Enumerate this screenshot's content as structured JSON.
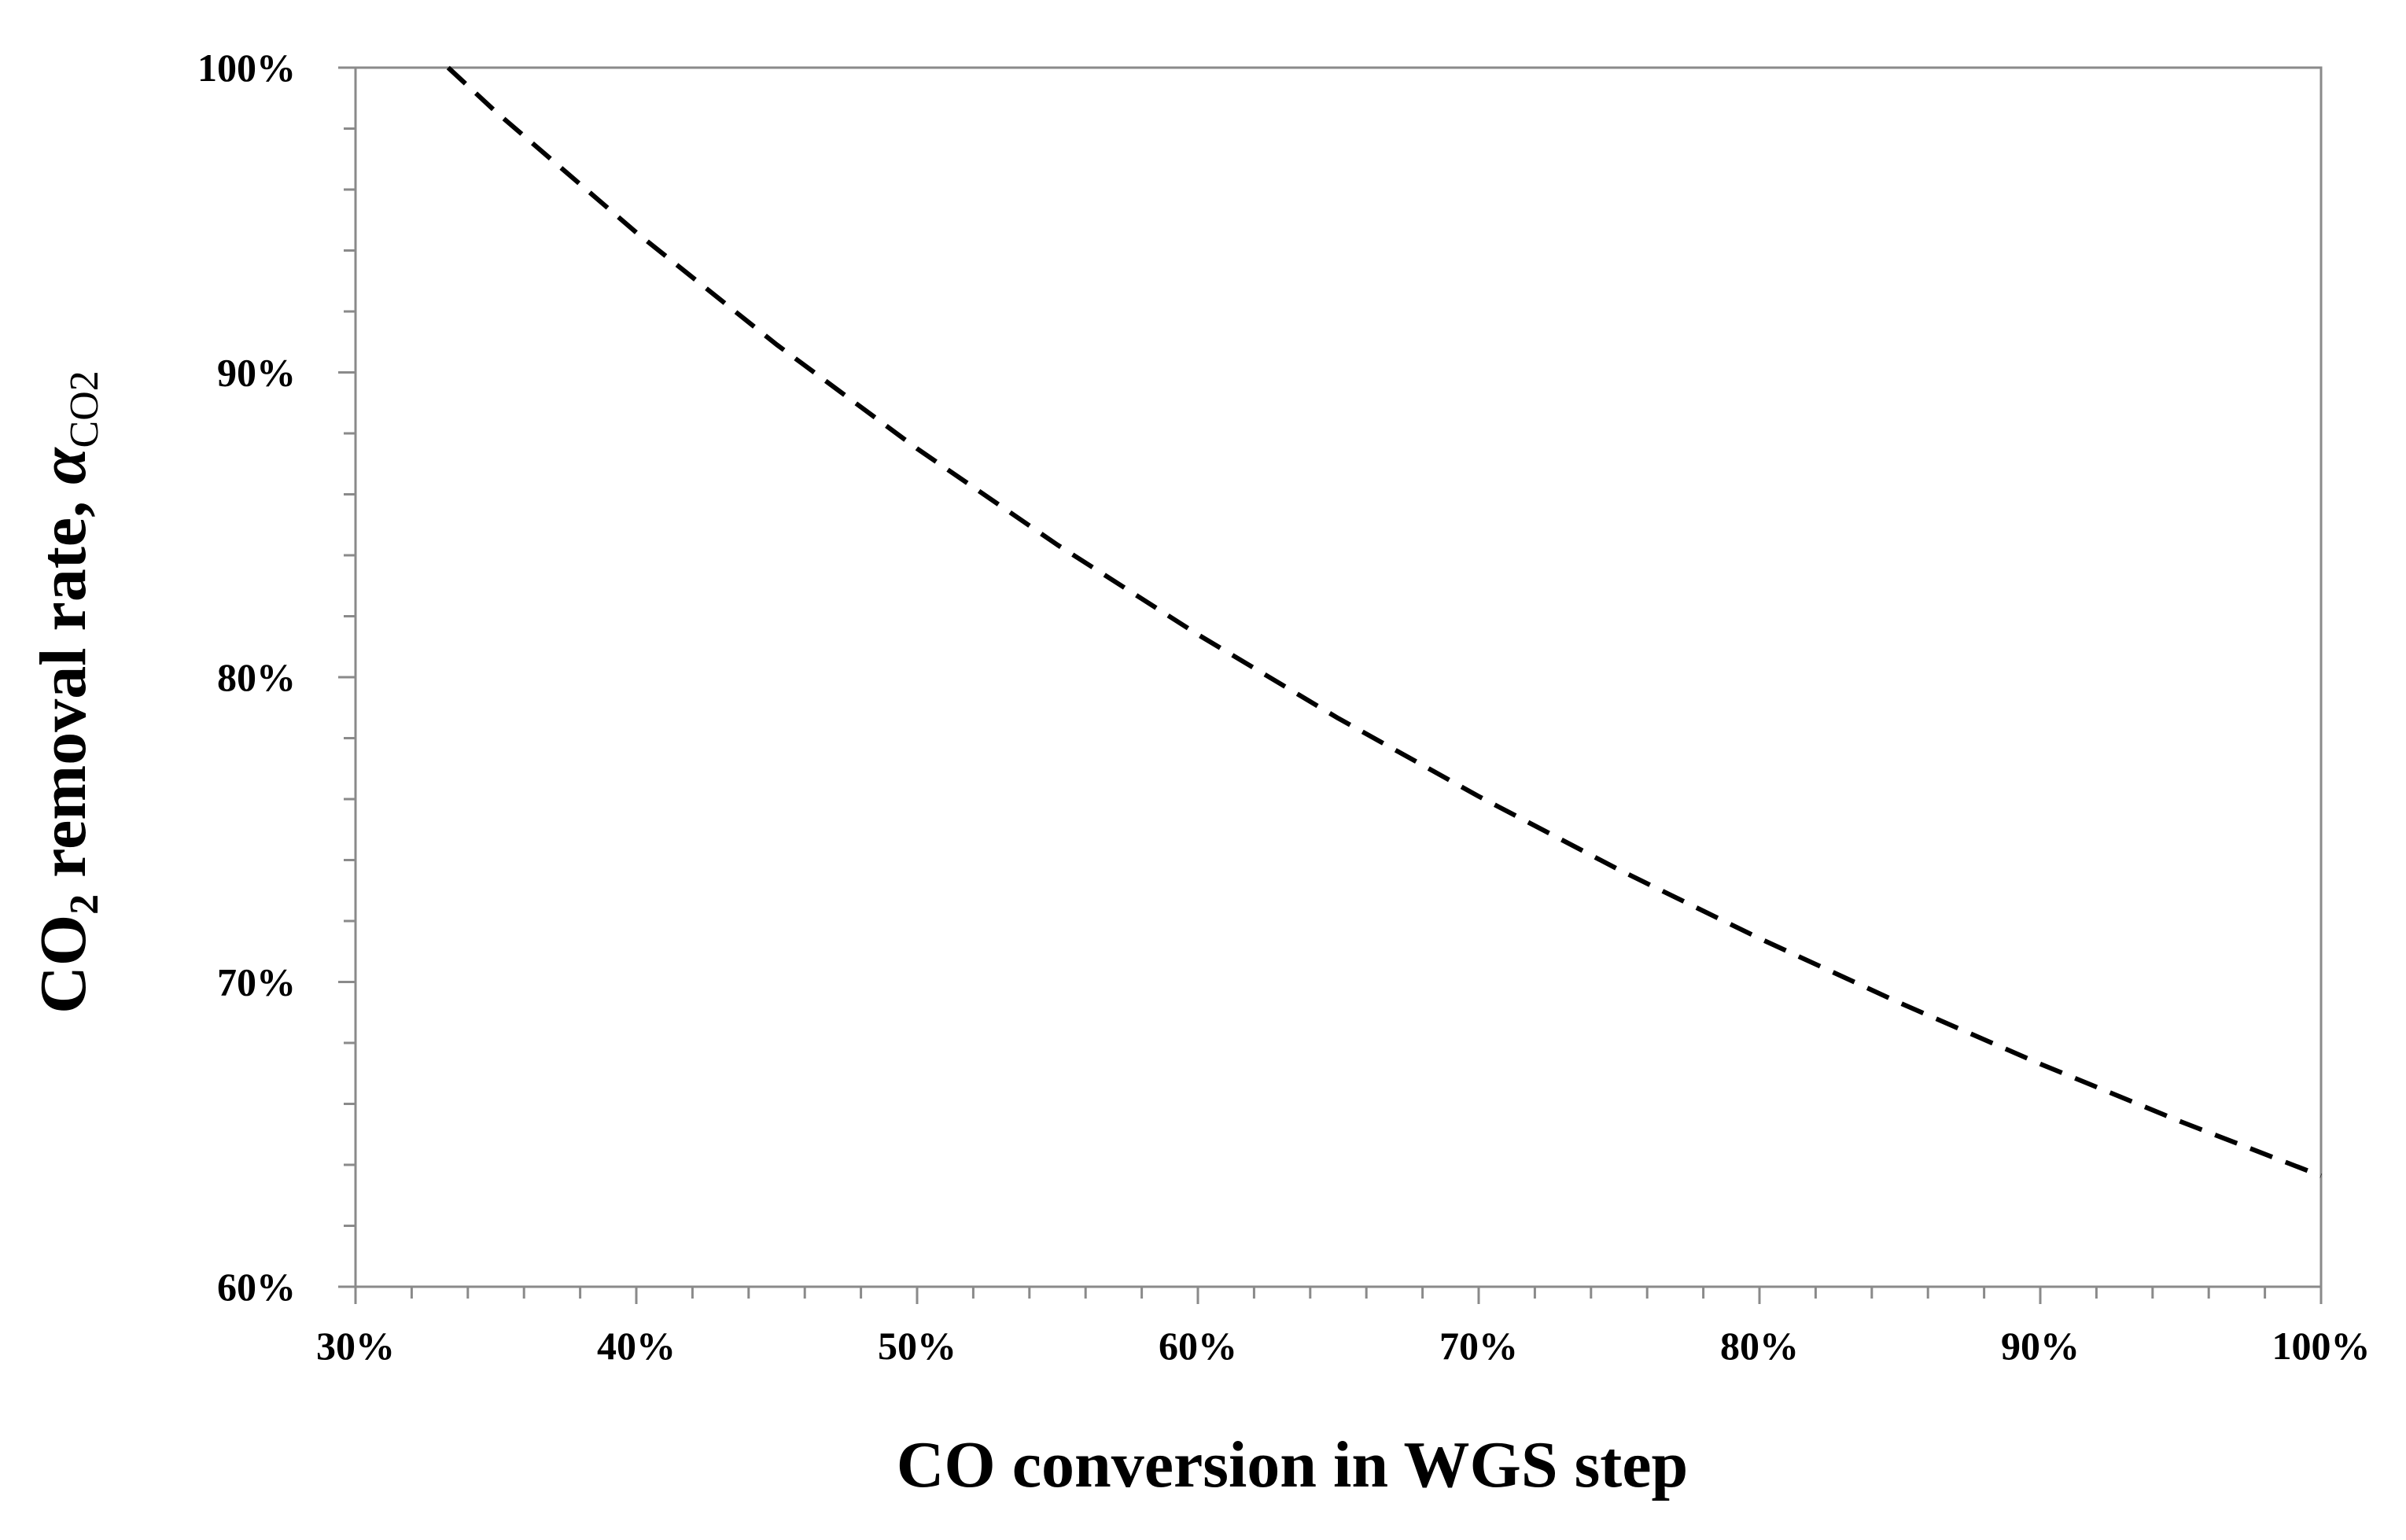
{
  "chart_data": {
    "type": "line",
    "title": "",
    "xlabel": "CO conversion in WGS step",
    "ylabel": {
      "main": "CO",
      "sub": "2",
      "rest": " removal rate, ",
      "symbol": "α",
      "symbol_sub": "CO2"
    },
    "xlim": [
      0.3,
      1.0
    ],
    "ylim": [
      0.6,
      1.0
    ],
    "x_ticks": [
      0.3,
      0.4,
      0.5,
      0.6,
      0.7,
      0.8,
      0.9,
      1.0
    ],
    "x_tick_labels": [
      "30%",
      "40%",
      "50%",
      "60%",
      "70%",
      "80%",
      "90%",
      "100%"
    ],
    "y_ticks": [
      0.6,
      0.7,
      0.8,
      0.9,
      1.0
    ],
    "y_tick_labels": [
      "60%",
      "70%",
      "80%",
      "90%",
      "100%"
    ],
    "grid": false,
    "legend": "none",
    "line_style": "dashed",
    "line_color": "#000000",
    "series": [
      {
        "x": [
          0.333,
          0.35,
          0.4,
          0.45,
          0.5,
          0.55,
          0.6,
          0.65,
          0.7,
          0.75,
          0.8,
          0.85,
          0.9,
          0.95,
          1.0
        ],
        "y": [
          1.0,
          0.9855,
          0.9459,
          0.9091,
          0.875,
          0.8434,
          0.814,
          0.7865,
          0.7609,
          0.7368,
          0.7143,
          0.6931,
          0.6731,
          0.6542,
          0.6364
        ]
      }
    ]
  }
}
